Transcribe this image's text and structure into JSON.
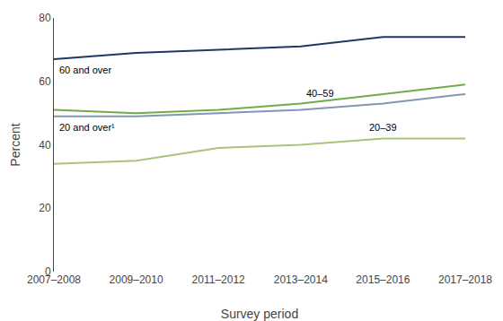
{
  "chart_data": {
    "type": "line",
    "categories": [
      "2007–2008",
      "2009–2010",
      "2011–2012",
      "2013–2014",
      "2015–2016",
      "2017–2018"
    ],
    "series": [
      {
        "name": "60 and over",
        "color": "#1f3864",
        "values": [
          67,
          69,
          70,
          71,
          74,
          74
        ]
      },
      {
        "name": "40–59",
        "color": "#70ad47",
        "values": [
          51,
          50,
          51,
          53,
          56,
          59
        ]
      },
      {
        "name": "20 and over¹",
        "color": "#8496b0",
        "values": [
          49,
          49,
          50,
          51,
          53,
          56
        ]
      },
      {
        "name": "20–39",
        "color": "#a9c47b",
        "values": [
          34,
          35,
          39,
          40,
          42,
          42
        ]
      }
    ],
    "xlabel": "Survey period",
    "ylabel": "Percent",
    "ylim": [
      0,
      80
    ],
    "yticks": [
      0,
      20,
      40,
      60,
      80
    ],
    "grid": false
  }
}
